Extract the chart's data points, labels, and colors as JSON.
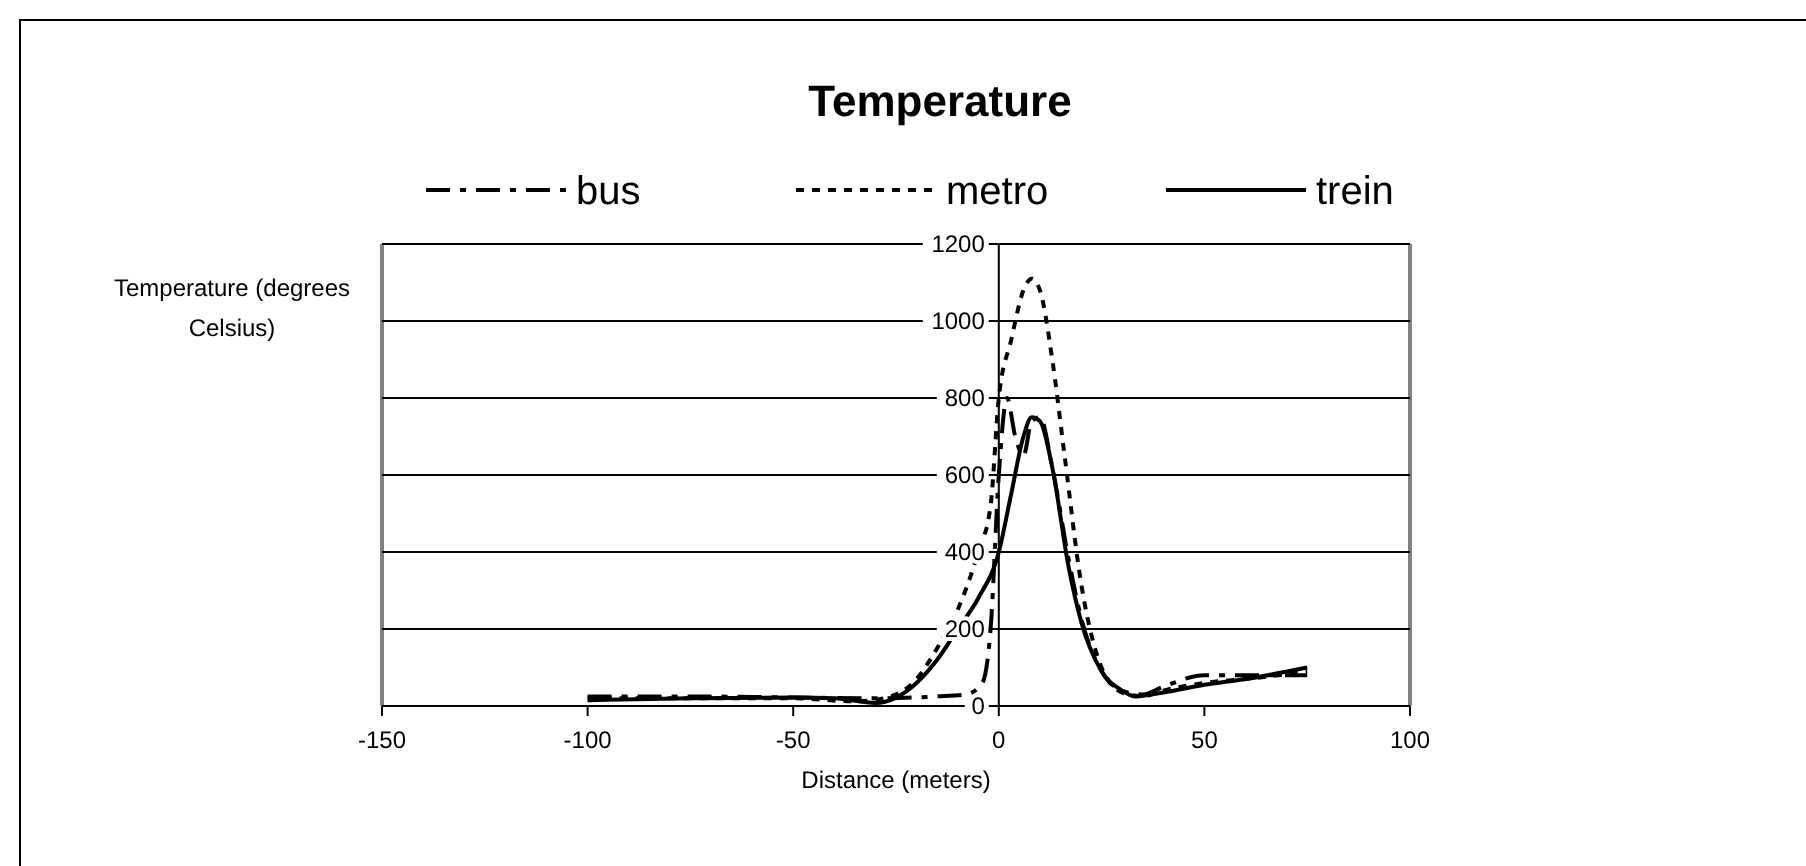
{
  "chart_data": {
    "type": "line",
    "title": "Temperature",
    "xlabel": "Distance (meters)",
    "ylabel": "Temperature (degrees Celsius)",
    "xlim": [
      -150,
      100
    ],
    "xticks": [
      -150,
      -100,
      -50,
      0,
      50,
      100
    ],
    "ylim": [
      0,
      1200
    ],
    "yticks": [
      0,
      200,
      400,
      600,
      800,
      1000,
      1200
    ],
    "grid": "y",
    "legend": "top",
    "marker": "none",
    "series": [
      {
        "name": "bus",
        "color": "#000000",
        "line_style": "dashdot",
        "x": [
          -100,
          -75,
          -50,
          -30,
          -15,
          -8,
          -4,
          -2,
          0,
          2,
          4,
          6,
          8,
          10,
          13,
          17,
          20,
          25,
          30,
          35,
          40,
          50,
          60,
          75
        ],
        "values": [
          25,
          25,
          22,
          20,
          25,
          30,
          60,
          200,
          600,
          800,
          700,
          650,
          740,
          750,
          620,
          380,
          230,
          90,
          40,
          30,
          50,
          80,
          80,
          80
        ]
      },
      {
        "name": "metro",
        "color": "#000000",
        "line_style": "dashed",
        "x": [
          -100,
          -75,
          -50,
          -35,
          -28,
          -20,
          -15,
          -10,
          -5,
          -2,
          0,
          3,
          6,
          8,
          10,
          13,
          16,
          20,
          25,
          30,
          35,
          40,
          50,
          60,
          75
        ],
        "values": [
          20,
          20,
          20,
          12,
          20,
          70,
          150,
          250,
          400,
          520,
          800,
          950,
          1080,
          1110,
          1080,
          900,
          650,
          320,
          100,
          35,
          25,
          40,
          60,
          70,
          90
        ]
      },
      {
        "name": "trein",
        "color": "#000000",
        "line_style": "solid",
        "x": [
          -100,
          -75,
          -50,
          -40,
          -30,
          -20,
          -15,
          -10,
          -5,
          0,
          3,
          6,
          8,
          10,
          13,
          17,
          20,
          25,
          30,
          33,
          40,
          50,
          60,
          75
        ],
        "values": [
          15,
          20,
          22,
          20,
          8,
          60,
          120,
          200,
          280,
          400,
          550,
          700,
          750,
          740,
          620,
          360,
          220,
          90,
          40,
          25,
          35,
          55,
          70,
          100
        ]
      }
    ]
  }
}
